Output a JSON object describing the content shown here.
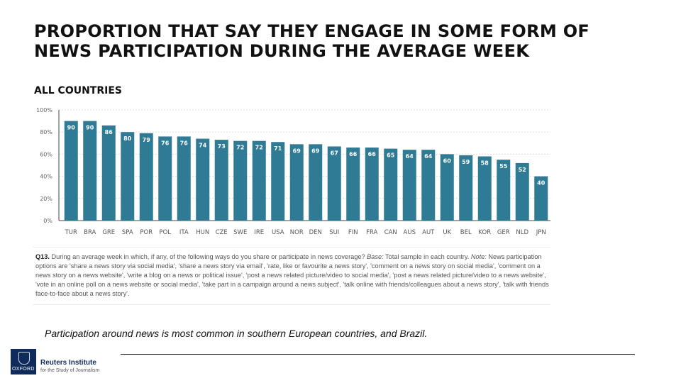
{
  "title": "PROPORTION THAT SAY THEY ENGAGE IN SOME FORM OF NEWS PARTICIPATION DURING THE AVERAGE WEEK",
  "subtitle": "ALL COUNTRIES",
  "chart_data": {
    "type": "bar",
    "categories": [
      "TUR",
      "BRA",
      "GRE",
      "SPA",
      "POR",
      "POL",
      "ITA",
      "HUN",
      "CZE",
      "SWE",
      "IRE",
      "USA",
      "NOR",
      "DEN",
      "SUI",
      "FIN",
      "FRA",
      "CAN",
      "AUS",
      "AUT",
      "UK",
      "BEL",
      "KOR",
      "GER",
      "NLD",
      "JPN"
    ],
    "values": [
      90,
      90,
      86,
      80,
      79,
      76,
      76,
      74,
      73,
      72,
      72,
      71,
      69,
      69,
      67,
      66,
      66,
      65,
      64,
      64,
      60,
      59,
      58,
      55,
      52,
      40
    ],
    "ylim": [
      0,
      100
    ],
    "yticks": [
      "0%",
      "20%",
      "40%",
      "60%",
      "80%",
      "100%"
    ],
    "grid": true,
    "bar_color": "#2f7a94",
    "xlabel": "",
    "ylabel": ""
  },
  "footnote": {
    "q": "Q13.",
    "text": " During an average week in which, if any, of the following ways do you share or participate in news coverage? ",
    "base_label": "Base:",
    "base_text": " Total sample in each country. ",
    "note_label": "Note:",
    "note_text": " News participation options are 'share a news story via social media', 'share a news story via email', 'rate, like or favourite a news story', 'comment on a news story on social media', 'comment on a news story on a news website', 'write a blog on a news or political issue', 'post a news related picture/video to social media', 'post a news related picture/video to a news website', 'vote in an online poll on a news website or social media', 'take part in a campaign around a news subject', 'talk online with friends/colleagues about a news story', 'talk with friends face-to-face about a news story'."
  },
  "caption": "Participation around news is most common in southern European countries, and Brazil.",
  "logo": {
    "name": "Reuters Institute",
    "sub": "for the Study of Journalism",
    "mark": "OXFORD"
  }
}
